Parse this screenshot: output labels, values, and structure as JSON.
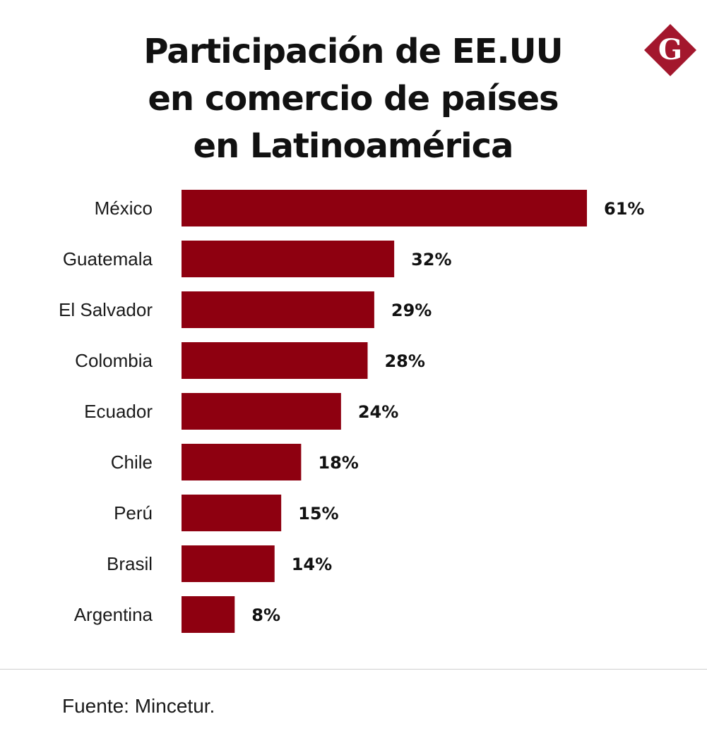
{
  "title_lines": [
    "Participación de EE.UU",
    "en comercio de países",
    "en Latinoamérica"
  ],
  "logo": {
    "letter": "G",
    "icon": "gestion-logo-icon",
    "color": "#a3172d"
  },
  "chart_data": {
    "type": "bar",
    "orientation": "horizontal",
    "categories": [
      "México",
      "Guatemala",
      "El Salvador",
      "Colombia",
      "Ecuador",
      "Chile",
      "Perú",
      "Brasil",
      "Argentina"
    ],
    "values": [
      61,
      32,
      29,
      28,
      24,
      18,
      15,
      14,
      8
    ],
    "value_labels": [
      "61%",
      "32%",
      "29%",
      "28%",
      "24%",
      "18%",
      "15%",
      "14%",
      "8%"
    ],
    "unit": "%",
    "bar_color": "#8e0010",
    "grid": false,
    "legend": "none"
  },
  "source": "Fuente: Mincetur."
}
